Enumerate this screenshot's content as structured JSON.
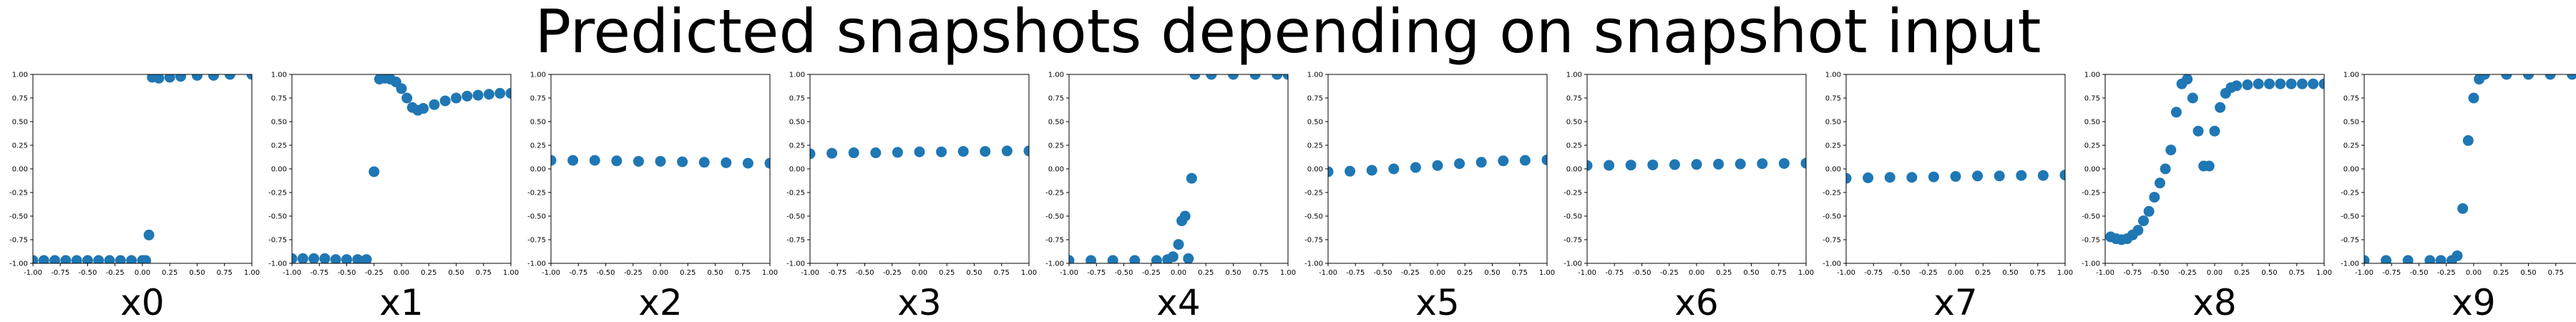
{
  "title": "Predicted snapshots depending on snapshot input",
  "colors": {
    "marker": "#1f77b4",
    "axes": "#000000"
  },
  "chart_data": [
    {
      "type": "scatter",
      "label": "x0",
      "xlim": [
        -1,
        1
      ],
      "ylim": [
        -1,
        1
      ],
      "x_ticks": [
        "-1.00",
        "-0.75",
        "-0.50",
        "-0.25",
        "0.00",
        "0.25",
        "0.50",
        "0.75",
        "1.00"
      ],
      "y_ticks": [
        "-1.00",
        "-0.75",
        "-0.50",
        "-0.25",
        "0.00",
        "0.25",
        "0.50",
        "0.75",
        "1.00"
      ],
      "points": [
        [
          -1.0,
          -0.97
        ],
        [
          -0.9,
          -0.97
        ],
        [
          -0.8,
          -0.97
        ],
        [
          -0.7,
          -0.97
        ],
        [
          -0.6,
          -0.97
        ],
        [
          -0.5,
          -0.97
        ],
        [
          -0.4,
          -0.97
        ],
        [
          -0.3,
          -0.97
        ],
        [
          -0.2,
          -0.97
        ],
        [
          -0.1,
          -0.97
        ],
        [
          0.0,
          -0.97
        ],
        [
          0.03,
          -0.97
        ],
        [
          0.06,
          -0.7
        ],
        [
          0.09,
          0.97
        ],
        [
          0.15,
          0.96
        ],
        [
          0.25,
          0.97
        ],
        [
          0.35,
          0.98
        ],
        [
          0.5,
          0.99
        ],
        [
          0.65,
          0.99
        ],
        [
          0.8,
          1.0
        ],
        [
          1.0,
          1.0
        ]
      ]
    },
    {
      "type": "scatter",
      "label": "x1",
      "xlim": [
        -1,
        1
      ],
      "ylim": [
        -1,
        1
      ],
      "x_ticks": [
        "-1.00",
        "-0.75",
        "-0.50",
        "-0.25",
        "0.00",
        "0.25",
        "0.50",
        "0.75",
        "1.00"
      ],
      "y_ticks": [
        "-1.00",
        "-0.75",
        "-0.50",
        "-0.25",
        "0.00",
        "0.25",
        "0.50",
        "0.75",
        "1.00"
      ],
      "points": [
        [
          -1.0,
          -0.95
        ],
        [
          -0.9,
          -0.95
        ],
        [
          -0.8,
          -0.95
        ],
        [
          -0.7,
          -0.95
        ],
        [
          -0.6,
          -0.96
        ],
        [
          -0.5,
          -0.96
        ],
        [
          -0.4,
          -0.96
        ],
        [
          -0.32,
          -0.96
        ],
        [
          -0.25,
          -0.03
        ],
        [
          -0.2,
          0.95
        ],
        [
          -0.15,
          0.96
        ],
        [
          -0.1,
          0.95
        ],
        [
          -0.05,
          0.92
        ],
        [
          0.0,
          0.85
        ],
        [
          0.05,
          0.75
        ],
        [
          0.1,
          0.65
        ],
        [
          0.15,
          0.62
        ],
        [
          0.2,
          0.64
        ],
        [
          0.3,
          0.68
        ],
        [
          0.4,
          0.72
        ],
        [
          0.5,
          0.75
        ],
        [
          0.6,
          0.77
        ],
        [
          0.7,
          0.78
        ],
        [
          0.8,
          0.79
        ],
        [
          0.9,
          0.8
        ],
        [
          1.0,
          0.8
        ]
      ]
    },
    {
      "type": "scatter",
      "label": "x2",
      "xlim": [
        -1,
        1
      ],
      "ylim": [
        -1,
        1
      ],
      "x_ticks": [
        "-1.00",
        "-0.75",
        "-0.50",
        "-0.25",
        "0.00",
        "0.25",
        "0.50",
        "0.75",
        "1.00"
      ],
      "y_ticks": [
        "-1.00",
        "-0.75",
        "-0.50",
        "-0.25",
        "0.00",
        "0.25",
        "0.50",
        "0.75",
        "1.00"
      ],
      "points": [
        [
          -1.0,
          0.09
        ],
        [
          -0.8,
          0.09
        ],
        [
          -0.6,
          0.09
        ],
        [
          -0.4,
          0.085
        ],
        [
          -0.2,
          0.08
        ],
        [
          0.0,
          0.08
        ],
        [
          0.2,
          0.075
        ],
        [
          0.4,
          0.07
        ],
        [
          0.6,
          0.065
        ],
        [
          0.8,
          0.06
        ],
        [
          1.0,
          0.06
        ]
      ]
    },
    {
      "type": "scatter",
      "label": "x3",
      "xlim": [
        -1,
        1
      ],
      "ylim": [
        -1,
        1
      ],
      "x_ticks": [
        "-1.00",
        "-0.75",
        "-0.50",
        "-0.25",
        "0.00",
        "0.25",
        "0.50",
        "0.75",
        "1.00"
      ],
      "y_ticks": [
        "-1.00",
        "-0.75",
        "-0.50",
        "-0.25",
        "0.00",
        "0.25",
        "0.50",
        "0.75",
        "1.00"
      ],
      "points": [
        [
          -1.0,
          0.16
        ],
        [
          -0.8,
          0.165
        ],
        [
          -0.6,
          0.17
        ],
        [
          -0.4,
          0.17
        ],
        [
          -0.2,
          0.175
        ],
        [
          0.0,
          0.18
        ],
        [
          0.2,
          0.18
        ],
        [
          0.4,
          0.185
        ],
        [
          0.6,
          0.185
        ],
        [
          0.8,
          0.19
        ],
        [
          1.0,
          0.19
        ]
      ]
    },
    {
      "type": "scatter",
      "label": "x4",
      "xlim": [
        -1,
        1
      ],
      "ylim": [
        -1,
        1
      ],
      "x_ticks": [
        "-1.00",
        "-0.75",
        "-0.50",
        "-0.25",
        "0.00",
        "0.25",
        "0.50",
        "0.75",
        "1.00"
      ],
      "y_ticks": [
        "-1.00",
        "-0.75",
        "-0.50",
        "-0.25",
        "0.00",
        "0.25",
        "0.50",
        "0.75",
        "1.00"
      ],
      "points": [
        [
          -1.0,
          -0.97
        ],
        [
          -0.8,
          -0.97
        ],
        [
          -0.6,
          -0.97
        ],
        [
          -0.4,
          -0.97
        ],
        [
          -0.2,
          -0.97
        ],
        [
          -0.1,
          -0.96
        ],
        [
          -0.05,
          -0.93
        ],
        [
          0.0,
          -0.8
        ],
        [
          0.03,
          -0.55
        ],
        [
          0.06,
          -0.5
        ],
        [
          0.09,
          -0.95
        ],
        [
          0.12,
          -0.1
        ],
        [
          0.15,
          1.0
        ],
        [
          0.3,
          1.0
        ],
        [
          0.5,
          1.0
        ],
        [
          0.7,
          1.0
        ],
        [
          0.9,
          1.0
        ],
        [
          1.0,
          1.0
        ]
      ]
    },
    {
      "type": "scatter",
      "label": "x5",
      "xlim": [
        -1,
        1
      ],
      "ylim": [
        -1,
        1
      ],
      "x_ticks": [
        "-1.00",
        "-0.75",
        "-0.50",
        "-0.25",
        "0.00",
        "0.25",
        "0.50",
        "0.75",
        "1.00"
      ],
      "y_ticks": [
        "-1.00",
        "-0.75",
        "-0.50",
        "-0.25",
        "0.00",
        "0.25",
        "0.50",
        "0.75",
        "1.00"
      ],
      "points": [
        [
          -1.0,
          -0.03
        ],
        [
          -0.8,
          -0.025
        ],
        [
          -0.6,
          -0.015
        ],
        [
          -0.4,
          0.0
        ],
        [
          -0.2,
          0.015
        ],
        [
          0.0,
          0.035
        ],
        [
          0.2,
          0.055
        ],
        [
          0.4,
          0.07
        ],
        [
          0.6,
          0.085
        ],
        [
          0.8,
          0.09
        ],
        [
          1.0,
          0.095
        ]
      ]
    },
    {
      "type": "scatter",
      "label": "x6",
      "xlim": [
        -1,
        1
      ],
      "ylim": [
        -1,
        1
      ],
      "x_ticks": [
        "-1.00",
        "-0.75",
        "-0.50",
        "-0.25",
        "0.00",
        "0.25",
        "0.50",
        "0.75",
        "1.00"
      ],
      "y_ticks": [
        "-1.00",
        "-0.75",
        "-0.50",
        "-0.25",
        "0.00",
        "0.25",
        "0.50",
        "0.75",
        "1.00"
      ],
      "points": [
        [
          -1.0,
          0.035
        ],
        [
          -0.8,
          0.037
        ],
        [
          -0.6,
          0.04
        ],
        [
          -0.4,
          0.042
        ],
        [
          -0.2,
          0.045
        ],
        [
          0.0,
          0.047
        ],
        [
          0.2,
          0.05
        ],
        [
          0.4,
          0.052
        ],
        [
          0.6,
          0.055
        ],
        [
          0.8,
          0.057
        ],
        [
          1.0,
          0.06
        ]
      ]
    },
    {
      "type": "scatter",
      "label": "x7",
      "xlim": [
        -1,
        1
      ],
      "ylim": [
        -1,
        1
      ],
      "x_ticks": [
        "-1.00",
        "-0.75",
        "-0.50",
        "-0.25",
        "0.00",
        "0.25",
        "0.50",
        "0.75",
        "1.00"
      ],
      "y_ticks": [
        "-1.00",
        "-0.75",
        "-0.50",
        "-0.25",
        "0.00",
        "0.25",
        "0.50",
        "0.75",
        "1.00"
      ],
      "points": [
        [
          -1.0,
          -0.1
        ],
        [
          -0.8,
          -0.095
        ],
        [
          -0.6,
          -0.09
        ],
        [
          -0.4,
          -0.09
        ],
        [
          -0.2,
          -0.085
        ],
        [
          0.0,
          -0.08
        ],
        [
          0.2,
          -0.075
        ],
        [
          0.4,
          -0.075
        ],
        [
          0.6,
          -0.07
        ],
        [
          0.8,
          -0.07
        ],
        [
          1.0,
          -0.065
        ]
      ]
    },
    {
      "type": "scatter",
      "label": "x8",
      "xlim": [
        -1,
        1
      ],
      "ylim": [
        -1,
        1
      ],
      "x_ticks": [
        "-1.00",
        "-0.75",
        "-0.50",
        "-0.25",
        "0.00",
        "0.25",
        "0.50",
        "0.75",
        "1.00"
      ],
      "y_ticks": [
        "-1.00",
        "-0.75",
        "-0.50",
        "-0.25",
        "0.00",
        "0.25",
        "0.50",
        "0.75",
        "1.00"
      ],
      "points": [
        [
          -0.95,
          -0.72
        ],
        [
          -0.9,
          -0.74
        ],
        [
          -0.85,
          -0.75
        ],
        [
          -0.8,
          -0.74
        ],
        [
          -0.75,
          -0.7
        ],
        [
          -0.7,
          -0.65
        ],
        [
          -0.65,
          -0.55
        ],
        [
          -0.6,
          -0.45
        ],
        [
          -0.55,
          -0.3
        ],
        [
          -0.5,
          -0.15
        ],
        [
          -0.45,
          0.0
        ],
        [
          -0.4,
          0.2
        ],
        [
          -0.35,
          0.6
        ],
        [
          -0.3,
          0.9
        ],
        [
          -0.25,
          0.95
        ],
        [
          -0.2,
          0.75
        ],
        [
          -0.15,
          0.4
        ],
        [
          -0.1,
          0.03
        ],
        [
          -0.05,
          0.03
        ],
        [
          0.0,
          0.4
        ],
        [
          0.05,
          0.65
        ],
        [
          0.1,
          0.8
        ],
        [
          0.15,
          0.86
        ],
        [
          0.2,
          0.88
        ],
        [
          0.3,
          0.89
        ],
        [
          0.4,
          0.9
        ],
        [
          0.5,
          0.9
        ],
        [
          0.6,
          0.9
        ],
        [
          0.7,
          0.9
        ],
        [
          0.8,
          0.9
        ],
        [
          0.9,
          0.9
        ],
        [
          1.0,
          0.9
        ]
      ]
    },
    {
      "type": "scatter",
      "label": "x9",
      "xlim": [
        -1,
        1
      ],
      "ylim": [
        -1,
        1
      ],
      "x_ticks": [
        "-1.00",
        "-0.75",
        "-0.50",
        "-0.25",
        "0.00",
        "0.25",
        "0.50",
        "0.75",
        "1.00"
      ],
      "y_ticks": [
        "-1.00",
        "-0.75",
        "-0.50",
        "-0.25",
        "0.00",
        "0.25",
        "0.50",
        "0.75",
        "1.00"
      ],
      "points": [
        [
          -1.0,
          -0.97
        ],
        [
          -0.8,
          -0.97
        ],
        [
          -0.6,
          -0.97
        ],
        [
          -0.4,
          -0.97
        ],
        [
          -0.3,
          -0.97
        ],
        [
          -0.2,
          -0.97
        ],
        [
          -0.15,
          -0.92
        ],
        [
          -0.1,
          -0.42
        ],
        [
          -0.05,
          0.3
        ],
        [
          0.0,
          0.75
        ],
        [
          0.05,
          0.95
        ],
        [
          0.1,
          1.0
        ],
        [
          0.3,
          1.0
        ],
        [
          0.5,
          1.0
        ],
        [
          0.7,
          1.0
        ],
        [
          0.9,
          1.0
        ],
        [
          1.0,
          1.0
        ]
      ]
    }
  ]
}
